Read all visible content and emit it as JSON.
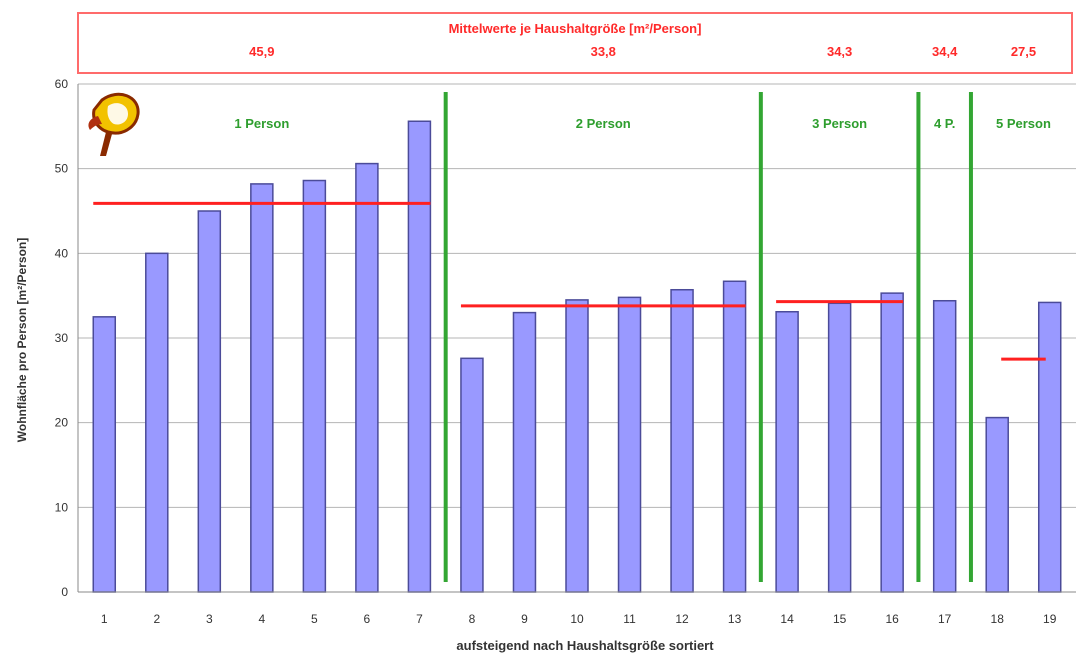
{
  "chart_data": {
    "type": "bar",
    "xlabel": "aufsteigend nach Haushaltsgröße sortiert",
    "ylabel": "Wohnfläche pro Person [m²/Person]",
    "ylim": [
      0,
      60
    ],
    "yticks": [
      0,
      10,
      20,
      30,
      40,
      50,
      60
    ],
    "grid": true,
    "categories": [
      "1",
      "2",
      "3",
      "4",
      "5",
      "6",
      "7",
      "8",
      "9",
      "10",
      "11",
      "12",
      "13",
      "14",
      "15",
      "16",
      "17",
      "18",
      "19"
    ],
    "values": [
      32.5,
      40,
      45,
      48.2,
      48.6,
      50.6,
      55.6,
      27.6,
      33,
      34.5,
      34.8,
      35.7,
      36.7,
      33.1,
      34.1,
      35.3,
      34.4,
      20.6,
      34.2
    ],
    "banner": {
      "title": "Mittelwerte je Haushaltgröße [m²/Person]",
      "averages": [
        "45,9",
        "33,8",
        "34,3",
        "34,4",
        "27,5"
      ]
    },
    "groups": [
      {
        "label": "1 Person",
        "from": 1,
        "to": 7,
        "mean": 45.9
      },
      {
        "label": "2 Person",
        "from": 8,
        "to": 13,
        "mean": 33.8
      },
      {
        "label": "3 Person",
        "from": 14,
        "to": 16,
        "mean": 34.3
      },
      {
        "label": "4 P.",
        "from": 17,
        "to": 17,
        "mean": 34.4
      },
      {
        "label": "5 Person",
        "from": 18,
        "to": 19,
        "mean": 27.5
      }
    ],
    "colors": {
      "bar_fill": "#9999ff",
      "bar_stroke": "#4b4b99",
      "mean_line": "#ff2020",
      "separator": "#33a633",
      "group_label": "#2e9e2e",
      "banner_text": "#ff2a2a",
      "banner_border": "#ff6b6b"
    },
    "logo": "bird-logo"
  }
}
